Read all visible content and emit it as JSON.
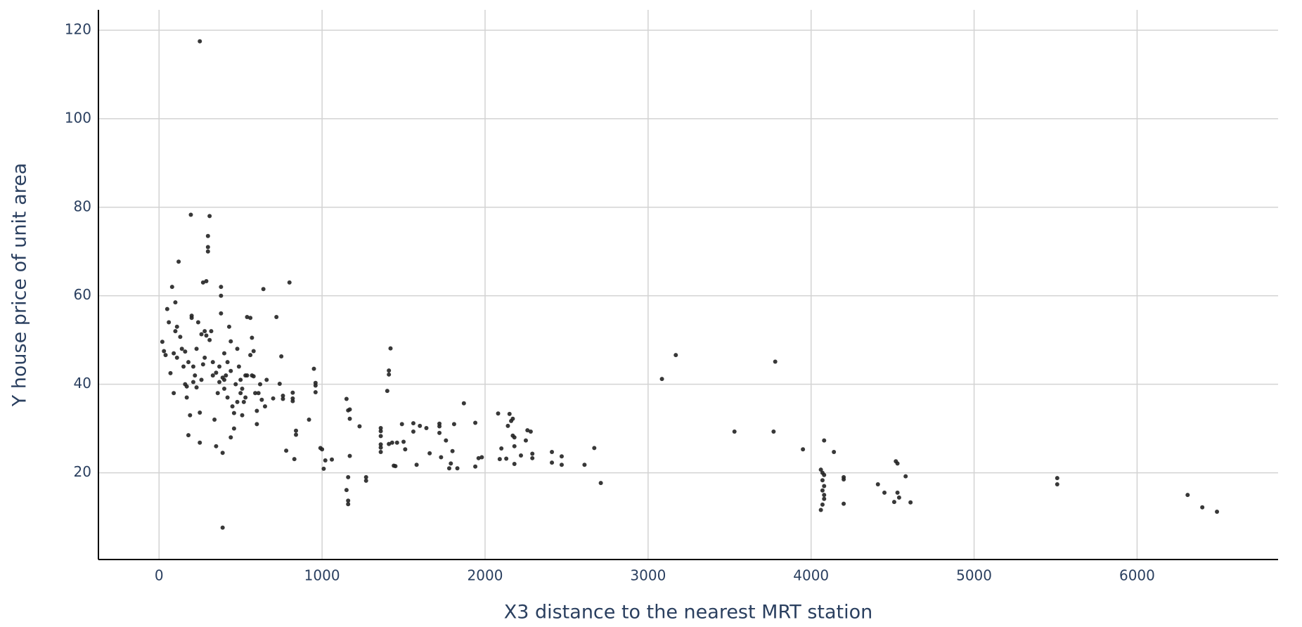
{
  "chart_data": {
    "type": "scatter",
    "x_label": "X3 distance to the nearest MRT station",
    "y_label": "Y house price of unit area",
    "color": "#222222",
    "grid": true,
    "xlim": [
      -372,
      6865
    ],
    "ylim": [
      0.4,
      124.6
    ],
    "xticks": [
      0,
      1000,
      2000,
      3000,
      4000,
      5000,
      6000
    ],
    "yticks": [
      20,
      40,
      60,
      80,
      100,
      120
    ],
    "x": [
      250,
      390,
      3085,
      3170,
      3780,
      3530,
      3770,
      3950,
      4080,
      4140,
      4200,
      4200,
      4200,
      4410,
      4450,
      4520,
      4530,
      4530,
      4510,
      4540,
      4580,
      4610,
      5510,
      5510,
      6310,
      6400,
      6490,
      2710,
      2670,
      2610,
      2470,
      2470,
      2410,
      2410,
      2290,
      2290,
      2280,
      2250,
      2260,
      2220,
      2180,
      2180,
      2180,
      2170,
      2160,
      2150,
      2170,
      2140,
      2130,
      2100,
      2090,
      2080,
      1980,
      1960,
      1940,
      1940,
      1870,
      1830,
      1810,
      1800,
      1790,
      1780,
      1760,
      1730,
      1720,
      1720,
      1720,
      1660,
      1640,
      1600,
      1580,
      1560,
      1560,
      1510,
      1490,
      1500,
      1460,
      1450,
      1440,
      1430,
      1410,
      1420,
      1410,
      1410,
      1400,
      1360,
      1360,
      1360,
      1360,
      1360,
      1360,
      1270,
      1270,
      1230,
      1170,
      1160,
      1170,
      1150,
      1150,
      1160,
      1160,
      1160,
      1170,
      1060,
      1020,
      1010,
      1000,
      990,
      960,
      960,
      960,
      950,
      920,
      840,
      840,
      830,
      820,
      820,
      820,
      800,
      780,
      760,
      760,
      750,
      740,
      720,
      700,
      650,
      640,
      620,
      610,
      600,
      590,
      580,
      580,
      570,
      560,
      560,
      540,
      530,
      530,
      520,
      510,
      500,
      500,
      490,
      480,
      470,
      460,
      450,
      440,
      440,
      430,
      420,
      410,
      400,
      400,
      390,
      390,
      380,
      380,
      380,
      370,
      360,
      350,
      340,
      330,
      320,
      310,
      300,
      300,
      300,
      290,
      280,
      280,
      270,
      260,
      250,
      250,
      240,
      230,
      220,
      210,
      200,
      195,
      190,
      180,
      170,
      160,
      150,
      140,
      120,
      110,
      100,
      100,
      90,
      80,
      70,
      60,
      50,
      40,
      30,
      20,
      90,
      110,
      130,
      160,
      170,
      180,
      200,
      210,
      230,
      260,
      270,
      290,
      310,
      330,
      350,
      370,
      400,
      420,
      440,
      460,
      480,
      510,
      540,
      570,
      600,
      630,
      660,
      4060,
      4070,
      4080,
      4070,
      4080,
      4070,
      4080,
      4070,
      4060,
      4080
    ],
    "values": [
      117.5,
      7.6,
      41.2,
      46.6,
      45.1,
      29.3,
      29.3,
      25.3,
      27.3,
      24.7,
      19,
      18.5,
      13,
      17.4,
      15.5,
      22.6,
      22.1,
      15.5,
      13.4,
      14.4,
      19.2,
      13.3,
      18.8,
      17.4,
      15,
      12.2,
      11.2,
      17.7,
      25.6,
      21.8,
      23.7,
      21.8,
      24.7,
      22.3,
      23.3,
      24.3,
      29.3,
      27.3,
      29.6,
      23.9,
      28,
      26,
      22,
      28.4,
      31.7,
      33.3,
      32.2,
      30.6,
      23.2,
      25.5,
      23.1,
      33.4,
      23.5,
      23.3,
      21.4,
      31.3,
      35.7,
      21,
      31,
      24.9,
      22.1,
      21,
      27.3,
      23.5,
      31.1,
      30.5,
      29,
      24.4,
      30.1,
      30.6,
      21.8,
      31.2,
      29.3,
      25.3,
      31,
      27,
      26.8,
      21.5,
      21.6,
      26.8,
      26.5,
      48.1,
      43.1,
      42.2,
      38.5,
      30.1,
      29.4,
      28.3,
      26.4,
      25.7,
      24.7,
      19,
      18.2,
      30.5,
      32.2,
      34.1,
      34.3,
      36.7,
      16.1,
      13.7,
      12.9,
      19,
      23.8,
      23,
      22.8,
      20.9,
      25.3,
      25.6,
      40.3,
      39.7,
      38.2,
      43.5,
      32,
      29.5,
      28.6,
      23.1,
      38.1,
      36.8,
      36.2,
      63,
      25,
      37.4,
      36.7,
      46.3,
      40.1,
      55.2,
      36.8,
      35,
      61.5,
      40,
      38,
      31,
      38,
      41.8,
      47.5,
      50.5,
      46.6,
      55,
      55.2,
      42,
      37,
      36,
      33,
      38,
      41,
      44,
      48,
      40,
      30,
      35,
      49.7,
      28,
      53,
      45,
      42,
      39,
      47,
      41.5,
      24.5,
      56,
      62,
      60,
      44,
      38,
      26,
      32,
      42,
      52,
      78,
      70,
      71,
      73.5,
      63.3,
      52,
      46,
      63,
      41,
      33.6,
      26.8,
      54,
      48,
      42,
      44,
      55.5,
      78.3,
      33,
      28.5,
      37,
      40,
      44,
      48,
      67.7,
      46,
      58.5,
      52,
      38,
      62,
      42.5,
      54,
      57,
      46.6,
      47.5,
      49.6,
      47,
      53,
      50.7,
      47.4,
      39.5,
      45,
      55,
      40.5,
      39.3,
      51.3,
      44.5,
      51,
      50,
      45,
      42.6,
      40.5,
      41,
      37,
      43,
      33.5,
      36,
      39,
      42,
      42,
      34,
      36.5,
      41,
      20.7,
      20,
      19.5,
      18.3,
      17,
      16,
      15,
      12.8,
      11.6,
      14.1
    ]
  }
}
